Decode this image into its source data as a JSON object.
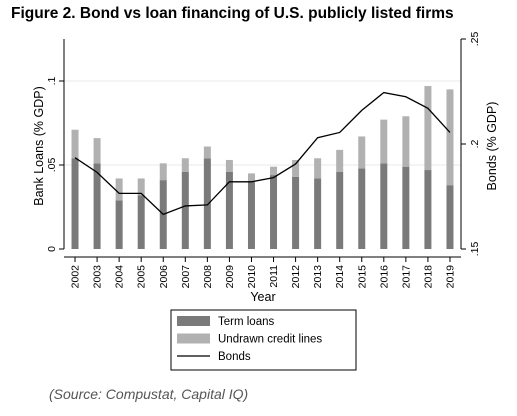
{
  "title": "Figure 2. Bond vs loan financing of U.S. publicly listed firms",
  "source_note": "(Source: Compustat, Capital IQ)",
  "colors": {
    "term_loans": "#7a7a7a",
    "undrawn_credit_lines": "#b1b1b1",
    "bonds": "#000000",
    "axis": "#000000",
    "gridline": "#e8e8e8"
  },
  "chart_data": {
    "type": "bar",
    "categories": [
      "2002",
      "2003",
      "2004",
      "2005",
      "2006",
      "2007",
      "2008",
      "2009",
      "2010",
      "2011",
      "2012",
      "2013",
      "2014",
      "2015",
      "2016",
      "2017",
      "2018",
      "2019"
    ],
    "xlabel": "Year",
    "ylabel": "Bank Loans (% GDP)",
    "ylabel_right": "Bonds (% GDP)",
    "ylim": [
      0,
      0.125
    ],
    "yticks": [
      0,
      0.05,
      0.1
    ],
    "ytick_labels": [
      "0",
      ".05",
      ".1"
    ],
    "ylim_right": [
      0.15,
      0.25
    ],
    "yticks_right": [
      0.15,
      0.2,
      0.25
    ],
    "ytick_labels_right": [
      ".15",
      ".2",
      ".25"
    ],
    "stacked": true,
    "grid": true,
    "legend_position": "bottom",
    "series": [
      {
        "name": "Term loans",
        "kind": "bar",
        "axis": "left",
        "values": [
          0.054,
          0.051,
          0.029,
          0.032,
          0.041,
          0.046,
          0.054,
          0.046,
          0.04,
          0.044,
          0.043,
          0.042,
          0.046,
          0.048,
          0.051,
          0.049,
          0.047,
          0.038
        ]
      },
      {
        "name": "Undrawn credit lines",
        "kind": "bar",
        "axis": "left",
        "values": [
          0.017,
          0.015,
          0.013,
          0.01,
          0.01,
          0.008,
          0.007,
          0.007,
          0.005,
          0.005,
          0.01,
          0.012,
          0.013,
          0.019,
          0.026,
          0.03,
          0.05,
          0.057
        ]
      },
      {
        "name": "Bonds",
        "kind": "line",
        "axis": "right",
        "values": [
          0.1935,
          0.1865,
          0.1765,
          0.1765,
          0.1665,
          0.1705,
          0.171,
          0.182,
          0.182,
          0.184,
          0.1905,
          0.203,
          0.2055,
          0.216,
          0.2245,
          0.2225,
          0.217,
          0.2055
        ]
      }
    ]
  }
}
